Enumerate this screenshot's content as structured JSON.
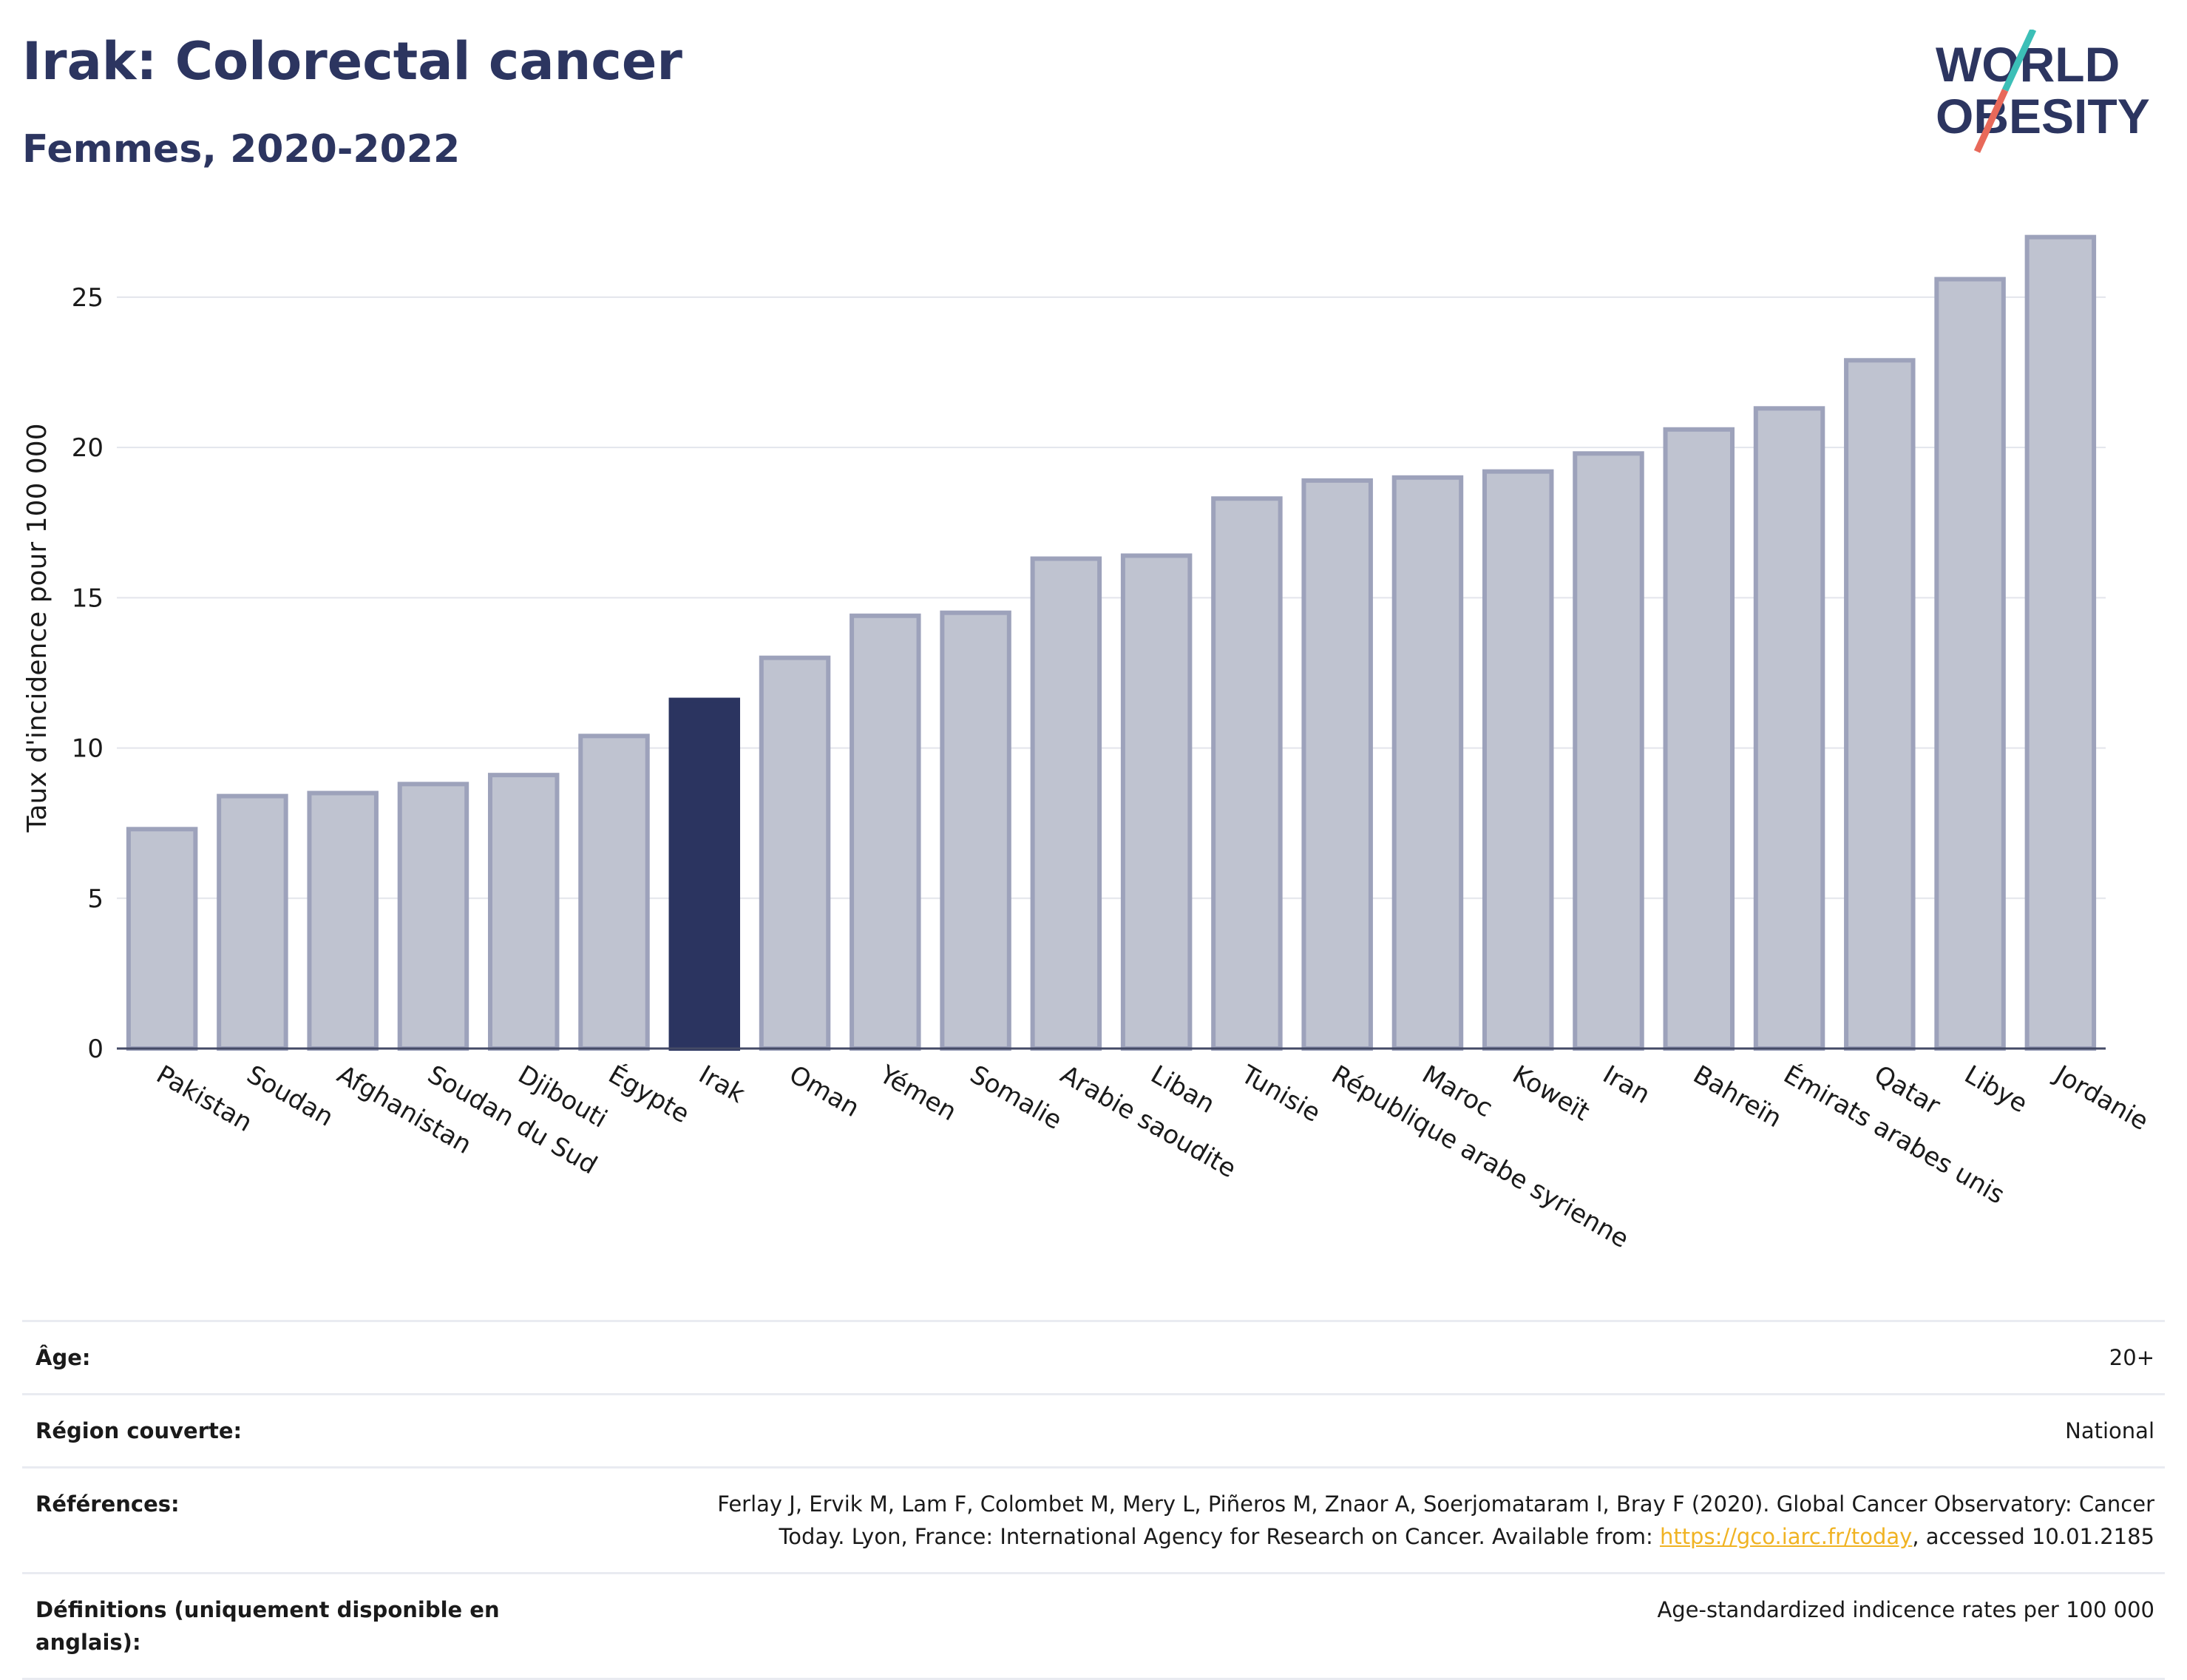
{
  "header": {
    "title": "Irak: Colorectal cancer",
    "subtitle": "Femmes, 2020-2022"
  },
  "logo": {
    "line1": "WORLD",
    "line2": "OBESITY",
    "accent_colors": [
      "#3cbfb7",
      "#e8695a"
    ]
  },
  "chart_data": {
    "type": "bar",
    "ylabel": "Taux d'incidence pour 100 000",
    "xlabel": "",
    "ylim": [
      0,
      28
    ],
    "yticks": [
      0,
      5,
      10,
      15,
      20,
      25
    ],
    "grid": true,
    "highlight": "Irak",
    "colors": {
      "bar": "#bfc3d0",
      "bar_border": "#9da2bb",
      "highlight": "#2b3460"
    },
    "categories": [
      "Pakistan",
      "Soudan",
      "Afghanistan",
      "Soudan du Sud",
      "Djibouti",
      "Égypte",
      "Irak",
      "Oman",
      "Yémen",
      "Somalie",
      "Arabie saoudite",
      "Liban",
      "Tunisie",
      "République arabe syrienne",
      "Maroc",
      "Koweït",
      "Iran",
      "Bahreïn",
      "Émirats arabes unis",
      "Qatar",
      "Libye",
      "Jordanie"
    ],
    "values": [
      7.3,
      8.4,
      8.5,
      8.8,
      9.1,
      10.4,
      11.6,
      13.0,
      14.4,
      14.5,
      16.3,
      16.4,
      18.3,
      18.9,
      19.0,
      19.2,
      19.8,
      20.6,
      21.3,
      22.9,
      25.6,
      27.0
    ]
  },
  "meta": {
    "rows": [
      {
        "label": "Âge:",
        "value": "20+"
      },
      {
        "label": "Région couverte:",
        "value": "National"
      },
      {
        "label": "Références:",
        "value_line1": "Ferlay J, Ervik M, Lam F, Colombet M, Mery L, Piñeros M, Znaor A, Soerjomataram I, Bray F (2020). Global Cancer Observatory: Cancer",
        "value_line2_prefix": "Today. Lyon, France: International Agency for Research on Cancer. Available from: ",
        "link": "https://gco.iarc.fr/today",
        "value_line2_suffix": ", accessed 10.01.2185"
      },
      {
        "label": "Définitions (uniquement disponible en anglais):",
        "value": "Age-standardized indicence rates per 100 000"
      }
    ]
  }
}
